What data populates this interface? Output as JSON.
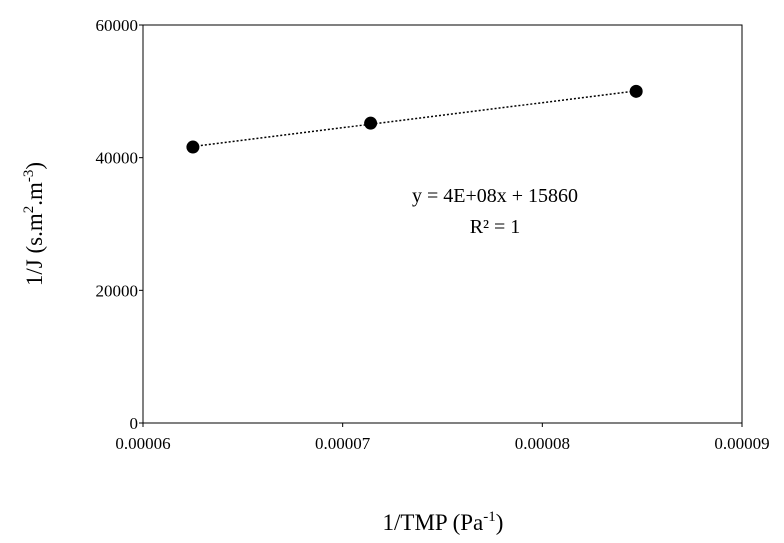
{
  "chart_data": {
    "type": "scatter",
    "x_label": [
      "1/TMP (Pa",
      "-1",
      ")"
    ],
    "y_label": [
      "1/J (s.m",
      "2",
      ".m",
      "-3",
      ")"
    ],
    "annotations": [
      "y = 4E+08x + 15860",
      "R² = 1"
    ],
    "trendline": true,
    "series": [
      {
        "color": "#000000",
        "x": [
          6.25e-05,
          7.14e-05,
          8.47e-05
        ],
        "values": [
          41600,
          45200,
          50000
        ]
      }
    ],
    "xlim": [
      6e-05,
      9e-05
    ],
    "xticks": [
      6e-05,
      7e-05,
      8e-05,
      9e-05
    ],
    "ylim": [
      0,
      60000
    ],
    "yticks": [
      0,
      20000,
      40000,
      60000
    ]
  }
}
